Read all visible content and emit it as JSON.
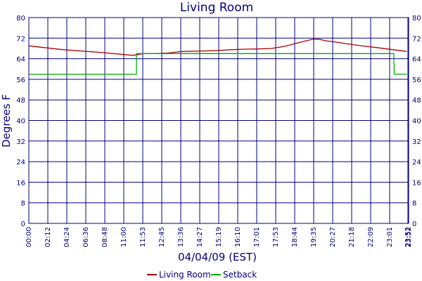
{
  "chart_data": {
    "type": "line",
    "title": "Living Room",
    "xlabel": "04/04/09 (EST)",
    "ylabel": "Degrees F",
    "ylim": [
      0,
      80
    ],
    "yticks": [
      0,
      8,
      16,
      24,
      32,
      40,
      48,
      56,
      64,
      72,
      80
    ],
    "xlim_hours": [
      0,
      24
    ],
    "x_tick_labels": [
      "00:00",
      "02:12",
      "04:24",
      "06:36",
      "08:48",
      "11:00",
      "11:53",
      "12:45",
      "13:36",
      "14:27",
      "15:19",
      "16:10",
      "17:01",
      "17:53",
      "18:44",
      "19:35",
      "20:27",
      "21:18",
      "22:09",
      "23:01",
      "23:52",
      "23:53"
    ],
    "grid": true,
    "legend_position": "bottom",
    "series": [
      {
        "name": "Living Room",
        "color": "#aa0000",
        "points": [
          [
            "00:00",
            69.0
          ],
          [
            "02:12",
            67.5
          ],
          [
            "04:24",
            66.5
          ],
          [
            "06:36",
            65.3
          ],
          [
            "07:12",
            66.0
          ],
          [
            "08:00",
            66.0
          ],
          [
            "08:48",
            66.2
          ],
          [
            "09:40",
            66.8
          ],
          [
            "11:00",
            67.0
          ],
          [
            "11:53",
            67.2
          ],
          [
            "12:45",
            67.5
          ],
          [
            "13:36",
            67.7
          ],
          [
            "14:27",
            67.8
          ],
          [
            "15:19",
            68.0
          ],
          [
            "16:10",
            68.8
          ],
          [
            "17:01",
            70.2
          ],
          [
            "17:53",
            71.5
          ],
          [
            "18:20",
            71.6
          ],
          [
            "18:44",
            71.0
          ],
          [
            "19:35",
            70.3
          ],
          [
            "20:27",
            69.5
          ],
          [
            "21:18",
            68.8
          ],
          [
            "22:09",
            68.2
          ],
          [
            "23:01",
            67.5
          ],
          [
            "23:53",
            66.8
          ]
        ]
      },
      {
        "name": "Setback",
        "color": "#00aa00",
        "points": [
          [
            "00:00",
            58
          ],
          [
            "06:48",
            58
          ],
          [
            "06:48",
            66
          ],
          [
            "23:04",
            66
          ],
          [
            "23:04",
            62
          ],
          [
            "23:05",
            62
          ],
          [
            "23:05",
            58
          ],
          [
            "23:53",
            58
          ]
        ]
      }
    ]
  }
}
